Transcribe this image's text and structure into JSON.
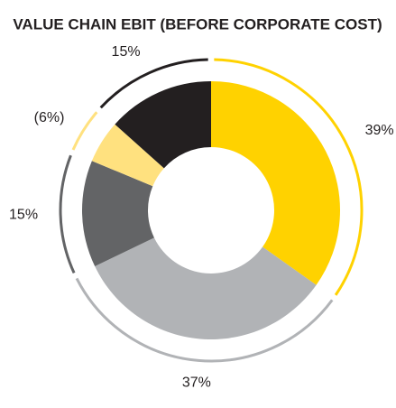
{
  "chart_data": {
    "type": "donut",
    "title": "VALUE CHAIN EBIT (BEFORE CORPORATE COST)",
    "values": [
      39,
      37,
      15,
      -6,
      15
    ],
    "value_labels": [
      "39%",
      "37%",
      "15%",
      "(6%)",
      "15%"
    ],
    "colors": [
      "#ffd200",
      "#b1b3b6",
      "#636466",
      "#ffe17f",
      "#231f20"
    ]
  }
}
